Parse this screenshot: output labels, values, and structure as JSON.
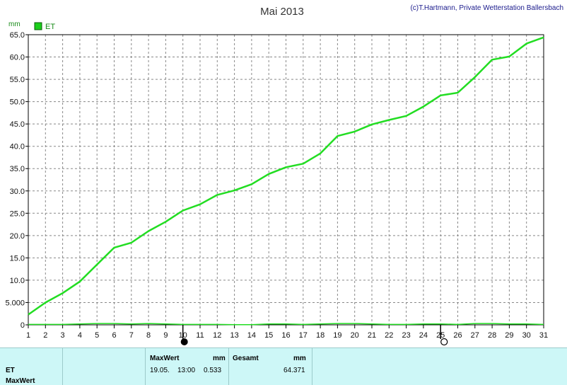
{
  "header": {
    "title": "Mai 2013",
    "credit": "(c)T.Hartmann, Private Wetterstation Ballersbach"
  },
  "legend": {
    "label": "ET",
    "color": "#1bcf1b"
  },
  "colors": {
    "line": "#22dd22",
    "grid": "#888888",
    "background": "#ffffff"
  },
  "chart_data": {
    "type": "line",
    "ylabel": "mm",
    "ylim": [
      0,
      65
    ],
    "y_ticks": [
      {
        "v": 0,
        "label": "0"
      },
      {
        "v": 5,
        "label": "5.000"
      },
      {
        "v": 10,
        "label": "10.0"
      },
      {
        "v": 15,
        "label": "15.0"
      },
      {
        "v": 20,
        "label": "20.0"
      },
      {
        "v": 25,
        "label": "25.0"
      },
      {
        "v": 30,
        "label": "30.0"
      },
      {
        "v": 35,
        "label": "35.0"
      },
      {
        "v": 40,
        "label": "40.0"
      },
      {
        "v": 45,
        "label": "45.0"
      },
      {
        "v": 50,
        "label": "50.0"
      },
      {
        "v": 55,
        "label": "55.0"
      },
      {
        "v": 60,
        "label": "60.0"
      },
      {
        "v": 65,
        "label": "65.0"
      }
    ],
    "xlim": [
      1,
      31
    ],
    "x_ticks": [
      "1",
      "2",
      "3",
      "4",
      "5",
      "6",
      "7",
      "8",
      "9",
      "10",
      "11",
      "12",
      "13",
      "14",
      "15",
      "16",
      "17",
      "18",
      "19",
      "20",
      "21",
      "22",
      "23",
      "24",
      "25",
      "26",
      "27",
      "28",
      "29",
      "30",
      "31"
    ],
    "grid": true,
    "legend_position": "top-left",
    "series": [
      {
        "name": "ET",
        "x": [
          1,
          2,
          3,
          4,
          5,
          6,
          7,
          8,
          9,
          10,
          11,
          12,
          13,
          14,
          15,
          16,
          17,
          18,
          19,
          20,
          21,
          22,
          23,
          24,
          25,
          26,
          27,
          28,
          29,
          30,
          31
        ],
        "values": [
          2.3,
          5.0,
          7.1,
          9.7,
          13.5,
          17.3,
          18.4,
          21.0,
          23.1,
          25.6,
          27.0,
          29.1,
          30.1,
          31.5,
          33.8,
          35.3,
          36.1,
          38.4,
          42.3,
          43.3,
          44.9,
          45.9,
          46.8,
          48.9,
          51.4,
          52.0,
          55.5,
          59.4,
          60.1,
          63.0,
          64.4
        ]
      },
      {
        "name": "",
        "values": [
          0.1,
          0.1,
          0.1,
          0.2,
          0.3,
          0.3,
          0.2,
          0.3,
          0.2,
          0.1,
          0.1,
          0.1,
          0.05,
          0.05,
          0.2,
          0.2,
          0.1,
          0.2,
          0.3,
          0.3,
          0.2,
          0.1,
          0.1,
          0.2,
          0.2,
          0.1,
          0.3,
          0.3,
          0.2,
          0.2,
          0.1
        ]
      }
    ],
    "markers": [
      {
        "day": 10,
        "type": "full-moon"
      },
      {
        "day": 25,
        "type": "new-moon"
      }
    ]
  },
  "panel": {
    "row_label_1": "ET",
    "row_label_2": "MaxWert",
    "max_header": "MaxWert",
    "max_unit": "mm",
    "max_date": "19.05.",
    "max_time": "13:00",
    "max_value": "0.533",
    "total_header": "Gesamt",
    "total_unit": "mm",
    "total_value": "64.371"
  }
}
